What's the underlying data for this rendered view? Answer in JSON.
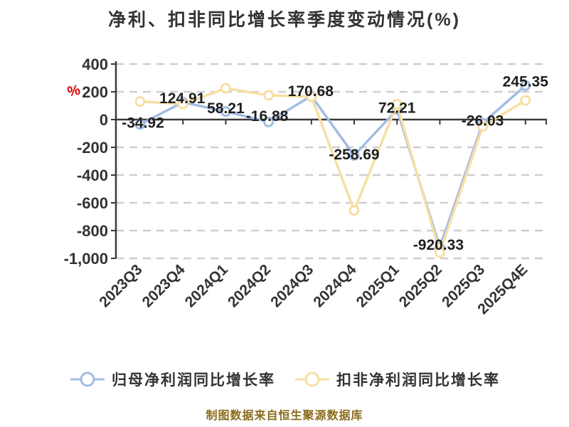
{
  "title": "净利、扣非同比增长率季度变动情况(%)",
  "chart_data": {
    "type": "line",
    "title": "净利、扣非同比增长率季度变动情况(%)",
    "y_unit_label": "%",
    "categories": [
      "2023Q3",
      "2023Q4",
      "2024Q1",
      "2024Q2",
      "2024Q3",
      "2024Q4",
      "2025Q1",
      "2025Q2",
      "2025Q3",
      "2025Q4E"
    ],
    "series": [
      {
        "name": "归母净利润同比增长率",
        "color": "#a3bce4",
        "values": [
          -34.92,
          124.91,
          58.21,
          -16.88,
          170.68,
          -258.69,
          72.21,
          -920.33,
          -26.03,
          245.35
        ],
        "point_labels": [
          "-34.92",
          "124.91",
          "58.21",
          "-16.88",
          "170.68",
          "-258.69",
          "72.21",
          "-920.33",
          "-26.03",
          "245.35"
        ]
      },
      {
        "name": "扣非净利润同比增长率",
        "color": "#f7dfa4",
        "values": [
          130,
          112,
          225,
          175,
          165,
          -655,
          110,
          -958,
          -50,
          138
        ],
        "point_labels": []
      }
    ],
    "ylim": [
      -1000,
      400
    ],
    "y_ticks": [
      {
        "value": 400,
        "label": "400"
      },
      {
        "value": 200,
        "label": "200"
      },
      {
        "value": 0,
        "label": "0"
      },
      {
        "value": -200,
        "label": "-200"
      },
      {
        "value": -400,
        "label": "-400"
      },
      {
        "value": -600,
        "label": "-600"
      },
      {
        "value": -800,
        "label": "-800"
      },
      {
        "value": -1000,
        "label": "-1,000"
      }
    ],
    "grid": "horizontal-dashed",
    "legend_position": "bottom"
  },
  "legend": {
    "items": [
      {
        "label": "归母净利润同比增长率",
        "color": "#a3bce4"
      },
      {
        "label": "扣非净利润同比增长率",
        "color": "#f7dfa4"
      }
    ]
  },
  "footer": {
    "text": "制图数据来自恒生聚源数据库",
    "color": "#8a6c1c"
  },
  "colors": {
    "background": "#ffffff",
    "axis": "#3a3a3a",
    "grid": "#cfcfcf",
    "tick_text": "#333333",
    "data_label_text": "#1f1f1f",
    "unit_label": "#d40000"
  }
}
